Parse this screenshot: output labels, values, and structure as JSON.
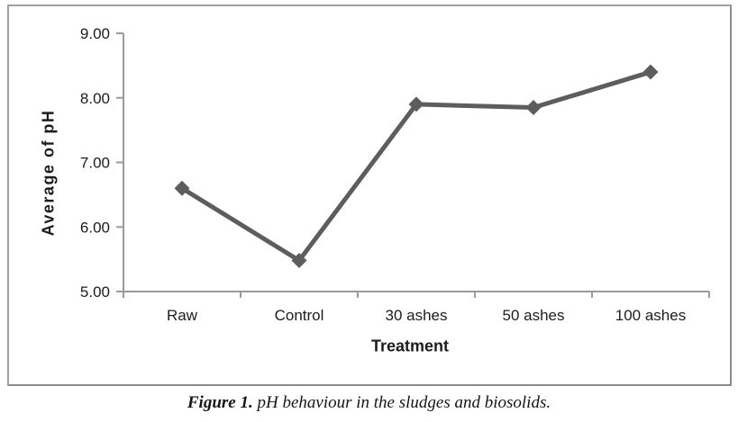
{
  "figure": {
    "caption_label": "Figure 1.",
    "caption_text": " pH behaviour in the sludges and biosolids."
  },
  "chart_data": {
    "type": "line",
    "title": "",
    "xlabel": "Treatment",
    "ylabel": "Average of pH",
    "categories": [
      "Raw",
      "Control",
      "30 ashes",
      "50 ashes",
      "100 ashes"
    ],
    "series": [
      {
        "name": "Average of pH",
        "values": [
          6.6,
          5.48,
          7.9,
          7.85,
          8.4
        ]
      }
    ],
    "ylim": [
      5.0,
      9.0
    ],
    "ytick_step": 1.0,
    "ytick_labels": [
      "5.00",
      "6.00",
      "7.00",
      "8.00",
      "9.00"
    ],
    "grid": false,
    "legend": "none",
    "marker": "diamond",
    "colors": {
      "line": "#5d5d5d",
      "axis": "#9a9a9a",
      "text": "#1c1c1c",
      "border": "#a0a0a0",
      "background": "#ffffff"
    }
  }
}
